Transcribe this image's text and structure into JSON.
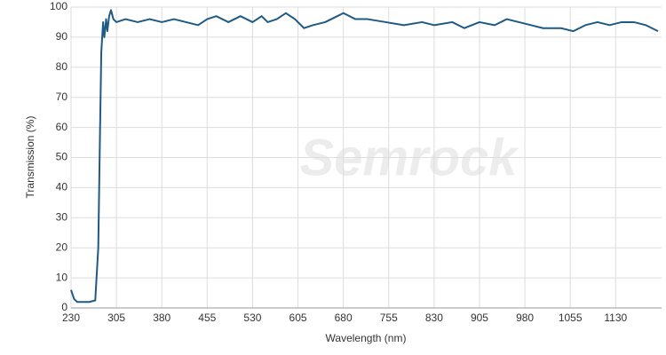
{
  "chart_data": {
    "type": "line",
    "watermark": "Semrock",
    "xlabel": "Wavelength (nm)",
    "ylabel": "Transmission (%)",
    "x": [
      230,
      235,
      240,
      260,
      270,
      275,
      278,
      280,
      283,
      285,
      288,
      290,
      293,
      296,
      300,
      305,
      320,
      340,
      360,
      380,
      400,
      420,
      440,
      455,
      470,
      490,
      510,
      530,
      545,
      555,
      570,
      585,
      600,
      615,
      630,
      650,
      670,
      680,
      700,
      720,
      750,
      780,
      810,
      830,
      860,
      880,
      905,
      930,
      950,
      970,
      990,
      1010,
      1040,
      1060,
      1080,
      1100,
      1120,
      1140,
      1160,
      1180,
      1200
    ],
    "series": [
      {
        "name": "Transmission",
        "color": "#1f5a85",
        "values": [
          6,
          3,
          2,
          2,
          2.5,
          20,
          60,
          85,
          95,
          90,
          96,
          92,
          97,
          99,
          96,
          95,
          96,
          95,
          96,
          95,
          96,
          95,
          94,
          96,
          97,
          95,
          97,
          95,
          97,
          95,
          96,
          98,
          96,
          93,
          94,
          95,
          97,
          98,
          96,
          96,
          95,
          94,
          95,
          94,
          95,
          93,
          95,
          94,
          96,
          95,
          94,
          93,
          93,
          92,
          94,
          95,
          94,
          95,
          95,
          94,
          92
        ]
      }
    ],
    "xlim": [
      230,
      1200
    ],
    "xticks": [
      230,
      305,
      380,
      455,
      530,
      605,
      680,
      755,
      830,
      905,
      980,
      1055,
      1130
    ],
    "ylim": [
      0,
      100
    ],
    "yticks": [
      0,
      10,
      20,
      30,
      40,
      50,
      60,
      70,
      80,
      90,
      100
    ],
    "grid": true
  }
}
